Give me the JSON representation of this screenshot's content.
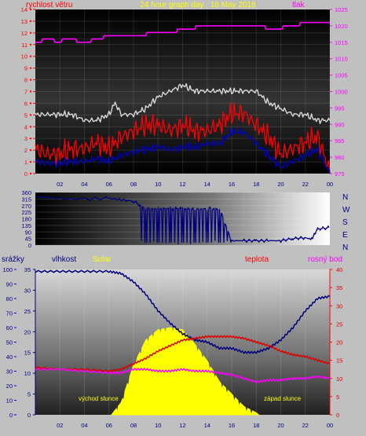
{
  "colors": {
    "wind_speed": "#ff0000",
    "wind_avg": "#0000cc",
    "wind_gust": "#d8d8d8",
    "pressure": "#ff00ff",
    "direction": "#000080",
    "rain": "#0000ff",
    "humidity": "#000080",
    "solar": "#ffff00",
    "temperature": "#dd0000",
    "dewpoint": "#ff00ff",
    "title": "#ffff00"
  },
  "chart_data": [
    {
      "type": "line",
      "title": "24 hour graph day : 16 May 2018",
      "left_label": "rychlost větru",
      "right_label": "tlak",
      "x_ticks": [
        "02",
        "04",
        "06",
        "08",
        "10",
        "12",
        "14",
        "16",
        "18",
        "20",
        "22",
        "00"
      ],
      "y_left_ticks": [
        "0",
        "1",
        "2",
        "3",
        "4",
        "5",
        "6",
        "7",
        "8",
        "9",
        "10",
        "11",
        "12",
        "13",
        "14"
      ],
      "y_right_ticks": [
        "975",
        "980",
        "985",
        "990",
        "995",
        "1000",
        "1005",
        "1010",
        "1015",
        "1020",
        "1025"
      ],
      "ylim_left": [
        0,
        14
      ],
      "ylim_right": [
        975,
        1025
      ],
      "xlim": [
        0,
        24
      ],
      "series": [
        {
          "color_key": "pressure",
          "axis": "right",
          "x": [
            0,
            0.5,
            0.6,
            1.5,
            1.6,
            2.1,
            2.2,
            3.3,
            3.4,
            4.5,
            4.6,
            5.5,
            5.6,
            9,
            9.1,
            11.5,
            11.6,
            13,
            13.1,
            18.7,
            18.8,
            20.1,
            20.2,
            21.5,
            21.6,
            24
          ],
          "values": [
            1015,
            1015,
            1016,
            1016,
            1015,
            1015,
            1016,
            1016,
            1015,
            1015,
            1016,
            1016,
            1017,
            1017,
            1018,
            1018,
            1019,
            1019,
            1020,
            1020,
            1019,
            1019,
            1020,
            1020,
            1021,
            1021
          ]
        },
        {
          "color_key": "wind_gust",
          "axis": "left",
          "x": [
            0,
            2,
            3,
            4,
            5,
            6,
            6.5,
            7,
            8,
            9,
            10,
            11,
            12,
            13,
            14,
            15,
            16,
            17,
            18,
            18.5,
            19,
            20,
            21,
            22,
            23,
            24
          ],
          "values": [
            5,
            5,
            5,
            4.5,
            4.5,
            5,
            6,
            5,
            5,
            5.5,
            6.5,
            7,
            7.5,
            7,
            7,
            7,
            7,
            7,
            7,
            6.5,
            6,
            5.5,
            5,
            5,
            4.5,
            4.5
          ]
        },
        {
          "color_key": "wind_speed",
          "axis": "left",
          "x": [
            0,
            1,
            2,
            3,
            4,
            5,
            6,
            7,
            8,
            9,
            10,
            11,
            12,
            13,
            14,
            15,
            16,
            17,
            18,
            19,
            20,
            21,
            22,
            23,
            24
          ],
          "values": [
            2,
            1.5,
            1.5,
            2,
            2,
            2.5,
            2,
            3,
            3.5,
            4,
            4,
            3.5,
            4,
            3.5,
            3.5,
            4,
            5,
            5,
            4,
            3,
            1.5,
            2,
            2.5,
            3,
            0
          ]
        },
        {
          "color_key": "wind_avg",
          "axis": "left",
          "x": [
            0,
            1,
            2,
            3,
            4,
            5,
            6,
            7,
            8,
            9,
            10,
            11,
            12,
            13,
            14,
            15,
            16,
            17,
            18,
            19,
            20,
            21,
            22,
            23,
            24
          ],
          "values": [
            1,
            0.8,
            0.8,
            1,
            1,
            1.2,
            1,
            1.5,
            1.8,
            2,
            2.2,
            2,
            2.2,
            2.2,
            2.5,
            2.5,
            3.5,
            3.5,
            2.5,
            1.5,
            0.5,
            1,
            1.5,
            2,
            0
          ]
        }
      ]
    },
    {
      "type": "line",
      "y_ticks": [
        "360",
        "315",
        "270",
        "225",
        "180",
        "135",
        "90",
        "45",
        "0"
      ],
      "right_ticks": [
        "N",
        "W",
        "S",
        "E",
        "N"
      ],
      "ylim": [
        0,
        360
      ],
      "xlim": [
        0,
        24
      ],
      "series": [
        {
          "color_key": "direction",
          "name": "",
          "x": [
            0,
            2,
            4,
            6,
            7,
            8,
            9,
            10,
            11,
            12,
            13,
            14,
            15,
            16,
            17,
            18,
            19,
            20,
            21,
            22,
            22.5,
            23,
            24
          ],
          "values": [
            330,
            320,
            315,
            320,
            310,
            300,
            250,
            250,
            250,
            250,
            245,
            250,
            250,
            30,
            30,
            30,
            30,
            30,
            45,
            50,
            40,
            110,
            120
          ]
        }
      ]
    },
    {
      "type": "line",
      "legend": [
        "srážky",
        "vlhkost",
        "Solar",
        "teplota",
        "rosný bod"
      ],
      "annotations": [
        "východ slunce",
        "západ slunce"
      ],
      "x_ticks": [
        "02",
        "04",
        "06",
        "08",
        "10",
        "12",
        "14",
        "16",
        "18",
        "20",
        "22",
        "00"
      ],
      "y_ticks_far_left": [
        "0",
        "10",
        "20",
        "30",
        "40",
        "50",
        "60",
        "70",
        "80",
        "90",
        "100"
      ],
      "y_ticks_left": [
        "0",
        "5",
        "10",
        "15",
        "20",
        "25",
        "30",
        "35"
      ],
      "y_ticks_right": [
        "0",
        "5",
        "10",
        "15",
        "20",
        "25",
        "30",
        "35",
        "40"
      ],
      "ylim_left": [
        0,
        35
      ],
      "ylim_right": [
        0,
        40
      ],
      "xlim": [
        0,
        24
      ],
      "series": [
        {
          "color_key": "humidity",
          "axis": "left",
          "x": [
            0,
            2,
            4,
            6,
            7,
            8,
            9,
            10,
            11,
            12,
            13,
            14,
            15,
            16,
            17,
            18,
            19,
            20,
            21,
            22,
            23,
            24
          ],
          "values": [
            34.5,
            34.5,
            34.5,
            34.5,
            34,
            32,
            29,
            25,
            22,
            19.5,
            18,
            17.5,
            16,
            16,
            15,
            15,
            16,
            18,
            21,
            25,
            28,
            28.5
          ]
        },
        {
          "color_key": "solar",
          "axis": "left",
          "x": [
            6.2,
            7,
            8,
            9,
            10,
            11,
            12,
            13,
            14,
            15,
            16,
            17,
            18,
            18.2
          ],
          "values": [
            0,
            3,
            12,
            18,
            20.5,
            21,
            20.5,
            17,
            13,
            8,
            5,
            2,
            0.5,
            0
          ]
        },
        {
          "color_key": "temperature",
          "axis": "right",
          "x": [
            0,
            2,
            4,
            6,
            7,
            8,
            9,
            10,
            11,
            12,
            13,
            14,
            15,
            16,
            17,
            18,
            19,
            20,
            21,
            22,
            23,
            24
          ],
          "values": [
            13,
            12.5,
            12.5,
            12,
            12.5,
            14,
            15.5,
            17.5,
            19,
            20.5,
            21,
            21.5,
            21.5,
            21.5,
            21,
            20,
            19,
            17.5,
            16.5,
            16,
            15,
            14
          ]
        },
        {
          "color_key": "dewpoint",
          "axis": "right",
          "x": [
            0,
            2,
            4,
            6,
            7,
            8,
            9,
            10,
            11,
            12,
            13,
            14,
            15,
            16,
            17,
            18,
            19,
            20,
            21,
            22,
            23,
            24
          ],
          "values": [
            12.5,
            12.5,
            12,
            11.5,
            11.5,
            12.5,
            12.5,
            12,
            12,
            12.5,
            12,
            12,
            11.5,
            11,
            10,
            9,
            9.5,
            9.5,
            10,
            10,
            10.5,
            10
          ]
        }
      ]
    }
  ]
}
